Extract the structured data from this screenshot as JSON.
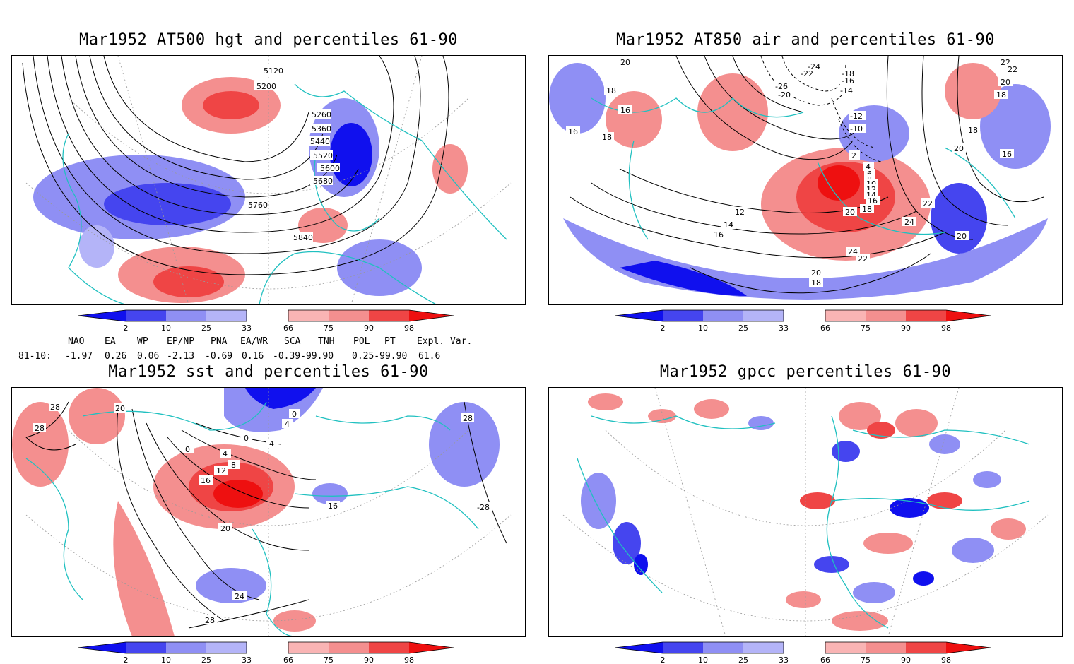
{
  "panels": [
    {
      "title": "Mar1952 AT500 hgt and percentiles 61-90",
      "contour_labels": [
        "5120",
        "5200",
        "5260",
        "5360",
        "5440",
        "5520",
        "5600",
        "5680",
        "5760",
        "5840"
      ]
    },
    {
      "title": "Mar1952 AT850 air and percentiles 61-90",
      "contour_labels": [
        "20",
        "18",
        "16",
        "16",
        "18",
        "-24",
        "-22",
        "-26",
        "-20",
        "-18",
        "-16",
        "-14",
        "-12",
        "-10",
        "22",
        "22",
        "20",
        "18",
        "18",
        "20",
        "16",
        "2",
        "4",
        "6",
        "8",
        "10",
        "12",
        "14",
        "16",
        "18",
        "20",
        "22",
        "24",
        "24",
        "22",
        "20",
        "18",
        "12",
        "14",
        "16",
        "20"
      ]
    },
    {
      "title": "Mar1952 sst and percentiles 61-90",
      "contour_labels": [
        "28",
        "28",
        "20",
        "0",
        "4",
        "8",
        "12",
        "16",
        "0",
        "4",
        "0",
        "4",
        "16",
        "20",
        "24",
        "28",
        "28",
        "-28"
      ]
    },
    {
      "title": "Mar1952 gpcc percentiles 61-90",
      "contour_labels": []
    }
  ],
  "colorbar": {
    "labels": [
      "2",
      "10",
      "25",
      "33",
      "66",
      "75",
      "90",
      "98"
    ],
    "colors": {
      "blue_dark": "#1010ee",
      "blue_mid": "#4545ef",
      "blue_light": "#8f8ff4",
      "blue_pale": "#b4b4f8",
      "red_pale": "#f9b4b4",
      "red_light": "#f48f8f",
      "red_mid": "#ef4545",
      "red_dark": "#ee1010"
    }
  },
  "indices": {
    "header": [
      "NAO",
      "EA",
      "WP",
      "EP/NP",
      "PNA",
      "EA/WR",
      "SCA",
      "TNH",
      "POL",
      "PT",
      "Expl. Var."
    ],
    "row_label": "81-10:",
    "row_values": [
      "-1.97",
      "0.26",
      "0.06",
      "-2.13",
      "-0.69",
      "0.16",
      "-0.39-99.90",
      "0.25-99.90",
      "61.6"
    ]
  },
  "map_colors": {
    "coast": "#20c0c0",
    "contour": "#000000",
    "grid": "#999999"
  }
}
